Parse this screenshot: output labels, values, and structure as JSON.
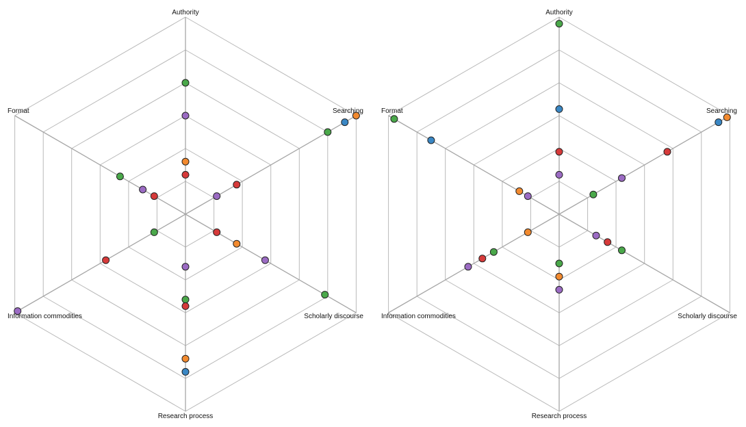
{
  "chart_data": [
    {
      "type": "radar",
      "axes": [
        "Authority",
        "Searching",
        "Scholarly discourse",
        "Research process",
        "Information commodities",
        "Format"
      ],
      "rmax": 6,
      "rings": 6,
      "series": [
        {
          "color": "#3a87c4",
          "values": [
            null,
            5.6,
            null,
            4.8,
            null,
            null
          ]
        },
        {
          "color": "#f28a2f",
          "values": [
            1.6,
            6.0,
            1.8,
            4.4,
            null,
            null
          ]
        },
        {
          "color": "#4aa84a",
          "values": [
            4.0,
            5.0,
            4.9,
            2.6,
            1.1,
            2.3
          ]
        },
        {
          "color": "#d63a3a",
          "values": [
            1.2,
            1.8,
            1.1,
            2.8,
            2.8,
            1.1
          ]
        },
        {
          "color": "#9b6bc3",
          "values": [
            3.0,
            1.1,
            2.8,
            1.6,
            5.9,
            1.5
          ]
        }
      ]
    },
    {
      "type": "radar",
      "axes": [
        "Authority",
        "Searching",
        "Scholarly discourse",
        "Research process",
        "Information commodities",
        "Format"
      ],
      "rmax": 6,
      "rings": 6,
      "series": [
        {
          "color": "#3a87c4",
          "values": [
            3.2,
            5.6,
            null,
            null,
            null,
            4.5
          ]
        },
        {
          "color": "#f28a2f",
          "values": [
            null,
            5.9,
            null,
            1.9,
            1.1,
            1.4
          ]
        },
        {
          "color": "#4aa84a",
          "values": [
            5.8,
            1.2,
            2.2,
            1.5,
            2.3,
            5.8
          ]
        },
        {
          "color": "#d63a3a",
          "values": [
            1.9,
            3.8,
            1.7,
            null,
            2.7,
            null
          ]
        },
        {
          "color": "#9b6bc3",
          "values": [
            1.2,
            2.2,
            1.3,
            2.3,
            3.2,
            1.1
          ]
        }
      ]
    }
  ]
}
